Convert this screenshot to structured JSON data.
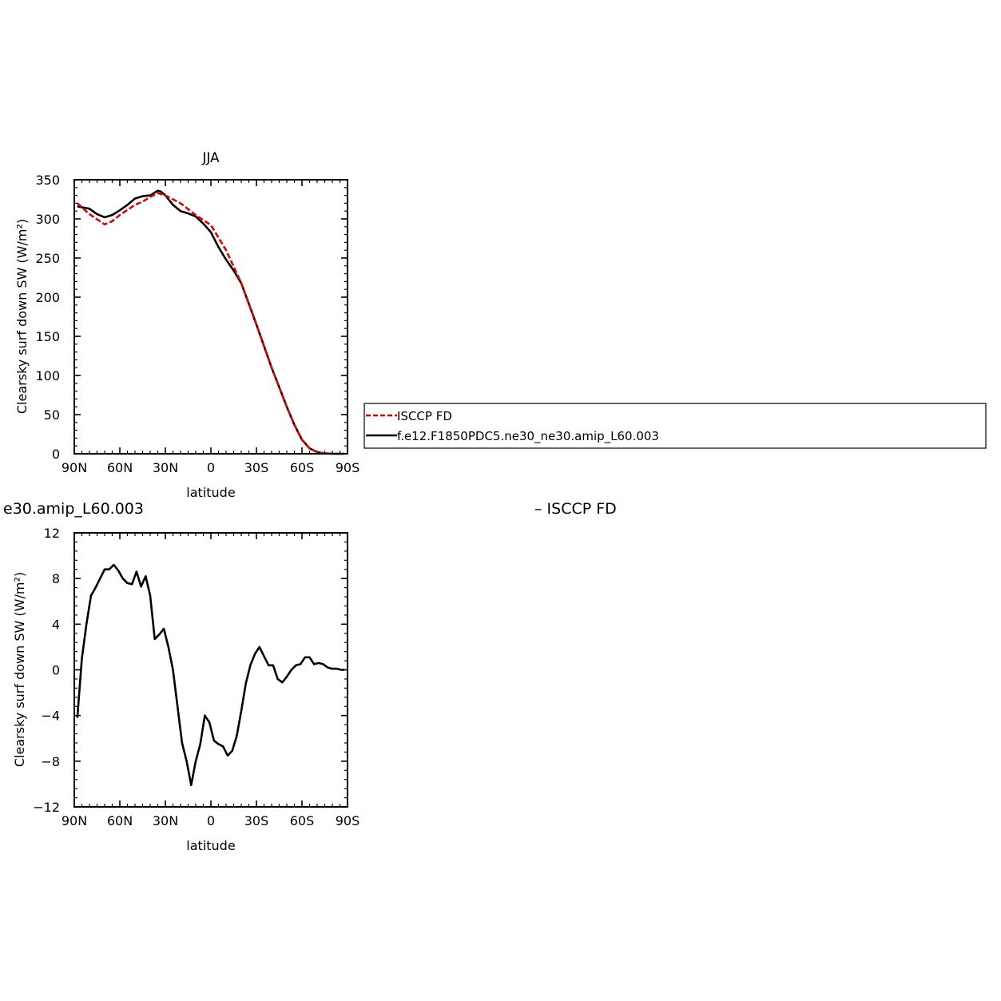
{
  "top_panel": {
    "title": "JJA",
    "xlabel": "latitude",
    "ylabel": "Clearsky surf down SW (W/m²)"
  },
  "bottom_panel": {
    "title": "e30.amip_L60.003",
    "right_title": "– ISCCP FD",
    "xlabel": "latitude",
    "ylabel": "Clearsky surf down SW (W/m²)"
  },
  "legend": {
    "items": [
      {
        "label": "ISCCP FD",
        "color": "#e00000",
        "dash": true
      },
      {
        "label": "f.e12.F1850PDC5.ne30_ne30.amip_L60.003",
        "color": "#000000",
        "dash": false
      }
    ]
  },
  "chart_data": [
    {
      "type": "line",
      "title": "JJA",
      "xlabel": "latitude",
      "ylabel": "Clearsky surf down SW (W/m²)",
      "xlim": [
        90,
        -90
      ],
      "ylim": [
        0,
        350
      ],
      "xticks": [
        90,
        60,
        30,
        0,
        -30,
        -60,
        -90
      ],
      "xtick_labels": [
        "90N",
        "60N",
        "30N",
        "0",
        "30S",
        "60S",
        "90S"
      ],
      "yticks": [
        0,
        50,
        100,
        150,
        200,
        250,
        300,
        350
      ],
      "ytick_labels": [
        "0",
        "50",
        "100",
        "150",
        "200",
        "250",
        "300",
        "350"
      ],
      "series": [
        {
          "name": "ISCCP FD",
          "color": "#e00000",
          "dash": true,
          "x": [
            88,
            80,
            70,
            65,
            60,
            50,
            45,
            40,
            35,
            30,
            20,
            10,
            0,
            -10,
            -20,
            -30,
            -40,
            -50,
            -55,
            -60,
            -65,
            -70,
            -75,
            -80,
            -85,
            -88
          ],
          "y": [
            320,
            306,
            293,
            297,
            305,
            318,
            322,
            328,
            333,
            330,
            320,
            305,
            292,
            260,
            218,
            165,
            110,
            60,
            37,
            18,
            7,
            2,
            0.5,
            0,
            0,
            0
          ]
        },
        {
          "name": "f.e12.F1850PDC5.ne30_ne30.amip_L60.003",
          "color": "#000000",
          "dash": false,
          "x": [
            88,
            80,
            75,
            70,
            65,
            60,
            55,
            50,
            45,
            40,
            35,
            33,
            30,
            25,
            20,
            15,
            10,
            5,
            0,
            -5,
            -10,
            -15,
            -20,
            -30,
            -40,
            -50,
            -55,
            -60,
            -65,
            -70,
            -75,
            -80,
            -85,
            -88
          ],
          "y": [
            316,
            313,
            306,
            302,
            305,
            311,
            318,
            326,
            329,
            330,
            336,
            335,
            330,
            318,
            310,
            307,
            303,
            294,
            283,
            264,
            248,
            234,
            218,
            165,
            110,
            60,
            37,
            18,
            7,
            2,
            0.5,
            0,
            0,
            0
          ]
        }
      ]
    },
    {
      "type": "line",
      "title": "e30.amip_L60.003",
      "xlabel": "latitude",
      "ylabel": "Clearsky surf down SW (W/m²)",
      "xlim": [
        90,
        -90
      ],
      "ylim": [
        -12,
        12
      ],
      "xticks": [
        90,
        60,
        30,
        0,
        -30,
        -60,
        -90
      ],
      "xtick_labels": [
        "90N",
        "60N",
        "30N",
        "0",
        "30S",
        "60S",
        "90S"
      ],
      "yticks": [
        -12,
        -8,
        -4,
        0,
        4,
        8,
        12
      ],
      "ytick_labels": [
        "−12",
        "−8",
        "−4",
        "0",
        "4",
        "8",
        "12"
      ],
      "series": [
        {
          "color": "#000000",
          "dash": false,
          "x": [
            88,
            85,
            82,
            79,
            76,
            73,
            70,
            67,
            64,
            61,
            58,
            55,
            52,
            49,
            46,
            43,
            40,
            37,
            34,
            31,
            28,
            25,
            22,
            19,
            16,
            13,
            10,
            7,
            4,
            1,
            -2,
            -5,
            -8,
            -11,
            -14,
            -17,
            -20,
            -23,
            -26,
            -29,
            -32,
            -35,
            -38,
            -41,
            -44,
            -47,
            -50,
            -53,
            -56,
            -59,
            -62,
            -65,
            -68,
            -71,
            -74,
            -77,
            -80,
            -83,
            -86,
            -88
          ],
          "y": [
            -4.2,
            1.0,
            4.0,
            6.5,
            7.2,
            8.0,
            8.8,
            8.8,
            9.2,
            8.7,
            8.0,
            7.6,
            7.5,
            8.6,
            7.3,
            8.2,
            6.5,
            2.7,
            3.1,
            3.6,
            2.0,
            0.0,
            -3.2,
            -6.4,
            -8.0,
            -10.1,
            -8.0,
            -6.5,
            -4.0,
            -4.6,
            -6.2,
            -6.5,
            -6.7,
            -7.5,
            -7.1,
            -5.8,
            -3.6,
            -1.2,
            0.4,
            1.4,
            2.0,
            1.2,
            0.4,
            0.4,
            -0.8,
            -1.1,
            -0.6,
            0.0,
            0.4,
            0.5,
            1.1,
            1.1,
            0.5,
            0.6,
            0.5,
            0.2,
            0.1,
            0.1,
            0.0,
            0.0
          ]
        }
      ]
    }
  ]
}
